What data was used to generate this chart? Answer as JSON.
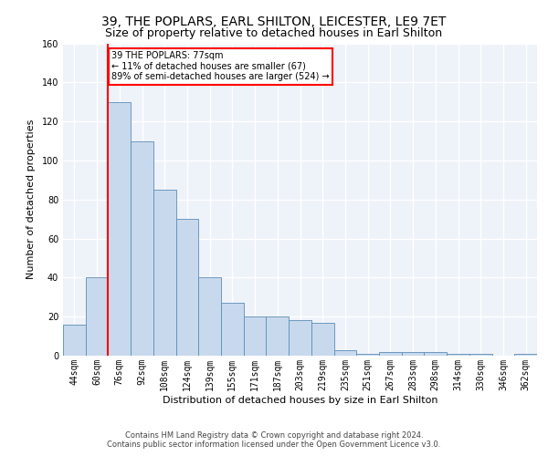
{
  "title": "39, THE POPLARS, EARL SHILTON, LEICESTER, LE9 7ET",
  "subtitle": "Size of property relative to detached houses in Earl Shilton",
  "xlabel": "Distribution of detached houses by size in Earl Shilton",
  "ylabel": "Number of detached properties",
  "categories": [
    "44sqm",
    "60sqm",
    "76sqm",
    "92sqm",
    "108sqm",
    "124sqm",
    "139sqm",
    "155sqm",
    "171sqm",
    "187sqm",
    "203sqm",
    "219sqm",
    "235sqm",
    "251sqm",
    "267sqm",
    "283sqm",
    "298sqm",
    "314sqm",
    "330sqm",
    "346sqm",
    "362sqm"
  ],
  "bar_heights": [
    16,
    40,
    130,
    110,
    85,
    70,
    40,
    27,
    20,
    20,
    18,
    17,
    3,
    1,
    2,
    2,
    2,
    1,
    1,
    0,
    1
  ],
  "bar_color": "#c9d9ed",
  "bar_edge_color": "#5b8db8",
  "annotation_text": "39 THE POPLARS: 77sqm\n← 11% of detached houses are smaller (67)\n89% of semi-detached houses are larger (524) →",
  "annotation_box_color": "white",
  "annotation_box_edge": "red",
  "property_line_color": "red",
  "property_line_xindex": 2,
  "ylim": [
    0,
    160
  ],
  "yticks": [
    0,
    20,
    40,
    60,
    80,
    100,
    120,
    140,
    160
  ],
  "footer_line1": "Contains HM Land Registry data © Crown copyright and database right 2024.",
  "footer_line2": "Contains public sector information licensed under the Open Government Licence v3.0.",
  "title_fontsize": 10,
  "subtitle_fontsize": 9,
  "axis_label_fontsize": 8,
  "tick_fontsize": 7,
  "footer_fontsize": 6,
  "background_color": "#eef2f9",
  "grid_color": "white"
}
